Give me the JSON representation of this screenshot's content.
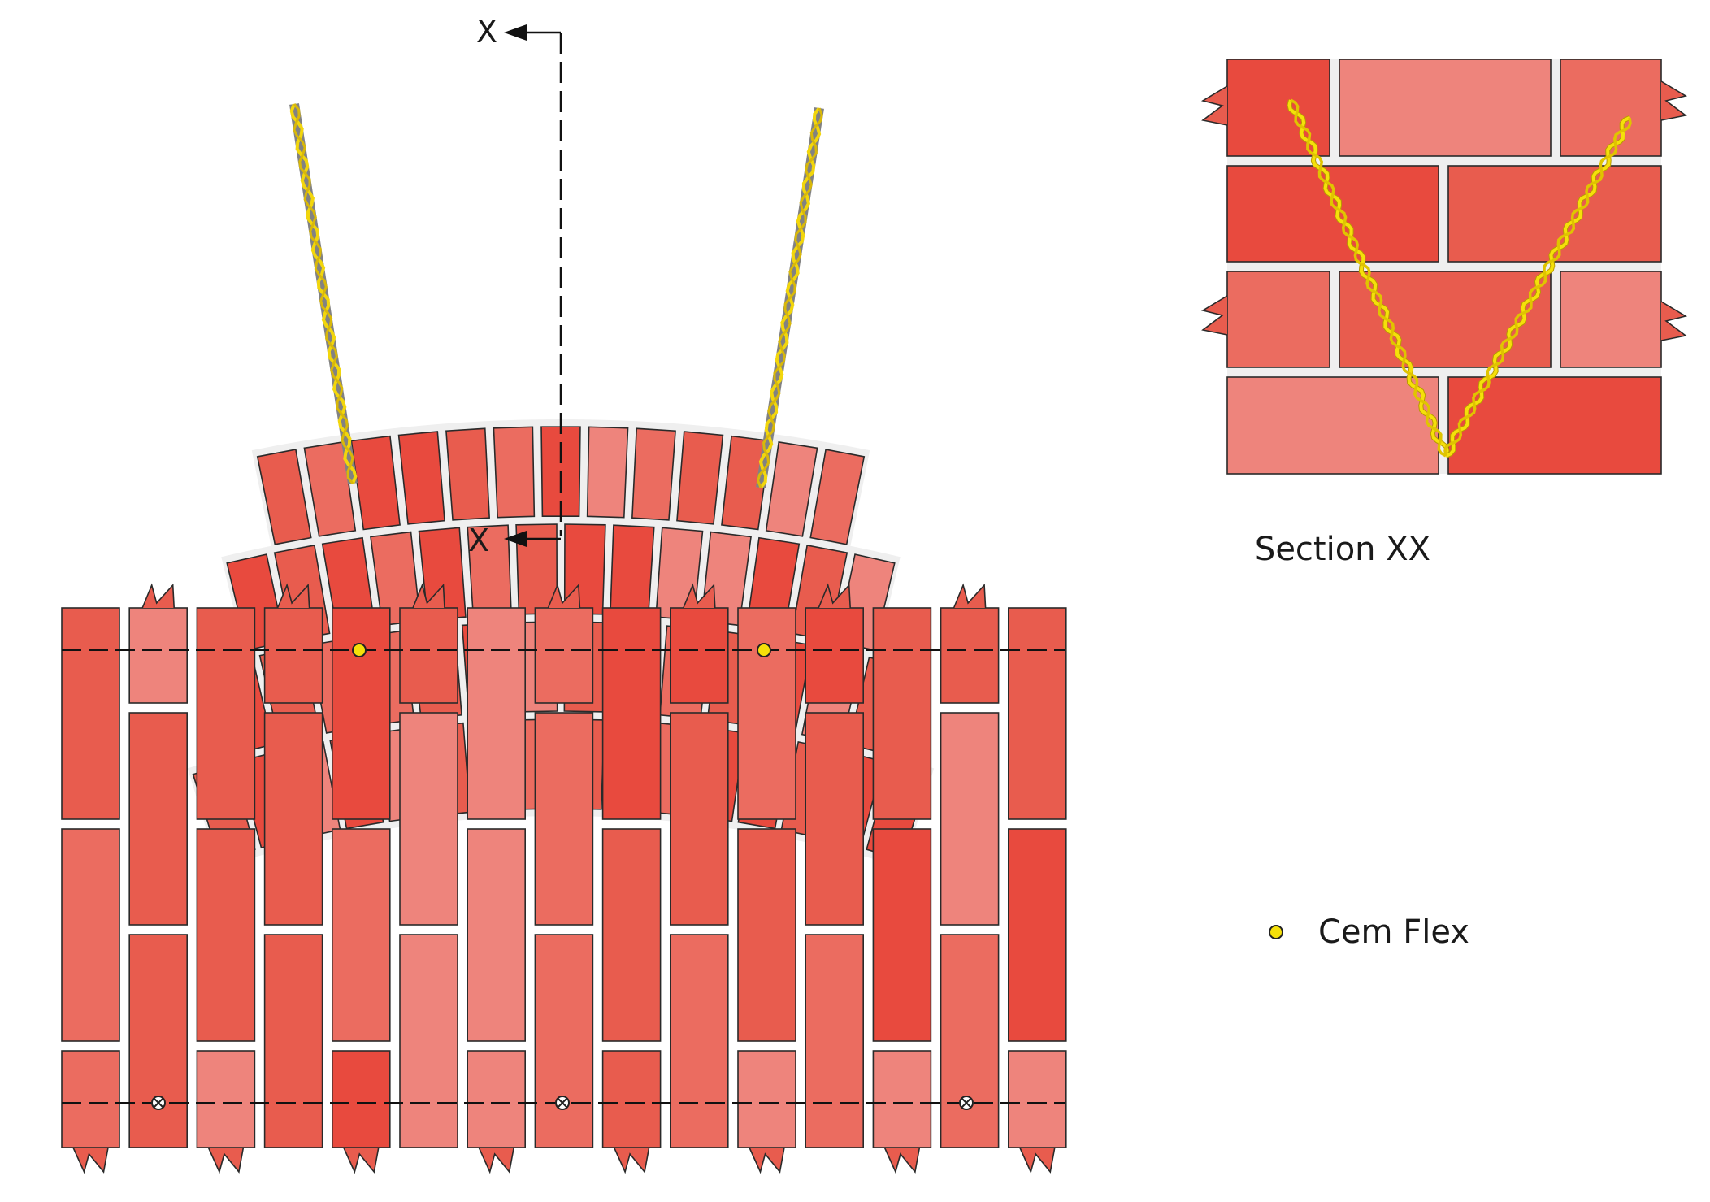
{
  "section_marker": "X",
  "section_caption": "Section  XX",
  "legend": {
    "label": "Cem  Flex"
  },
  "colors": {
    "brick_palette": [
      "#e84a3e",
      "#e85c4e",
      "#eb6c60",
      "#ee847c"
    ],
    "mortar": "#efefef",
    "outline": "#2a2a2a",
    "cem_flex": "#f5e00a",
    "rebar": "#f2d60c"
  }
}
